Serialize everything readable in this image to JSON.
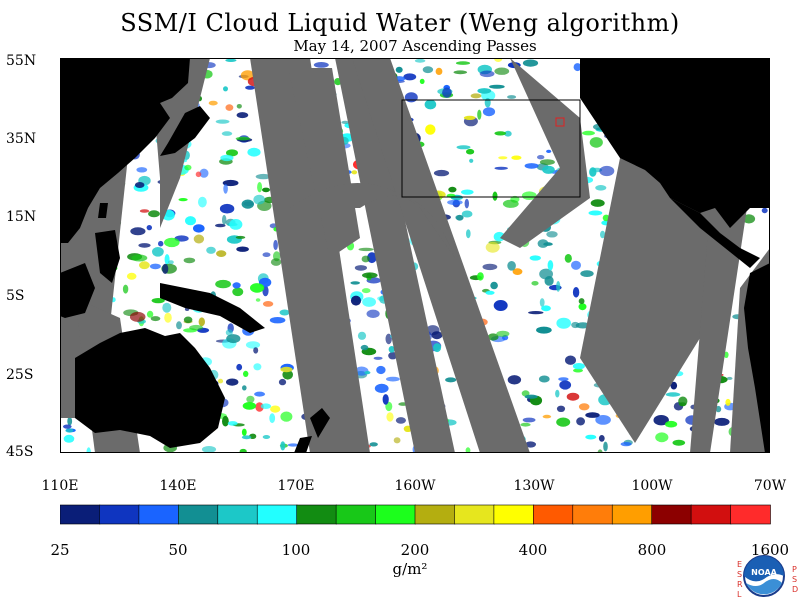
{
  "title": "SSM/I Cloud Liquid Water (Weng algorithm)",
  "subtitle": "May 14, 2007  Ascending Passes",
  "latitude_labels": [
    "55N",
    "35N",
    "15N",
    "5S",
    "25S",
    "45S"
  ],
  "longitude_labels": [
    "110E",
    "140E",
    "170E",
    "160W",
    "130W",
    "100W",
    "70W"
  ],
  "colorbar": {
    "tick_labels": [
      "25",
      "50",
      "100",
      "200",
      "400",
      "800",
      "1600"
    ],
    "units": "g/m²",
    "colors": [
      "#0a1e78",
      "#0f35c0",
      "#1a64ff",
      "#128f93",
      "#1cc8c8",
      "#22ffff",
      "#128c12",
      "#18c818",
      "#1cff1c",
      "#b4ae10",
      "#e6e61e",
      "#ffff00",
      "#ff5a00",
      "#ff7d0a",
      "#ff9e00",
      "#8c0000",
      "#d20f0f",
      "#ff2b2b"
    ]
  },
  "map_colors": {
    "land": "#000000",
    "no_data": "#6b6b6b",
    "clear": "#ffffff"
  },
  "logo": {
    "left_letters": "ESRL",
    "right_letters": "PSD",
    "emblem_text": "NOAA"
  }
}
